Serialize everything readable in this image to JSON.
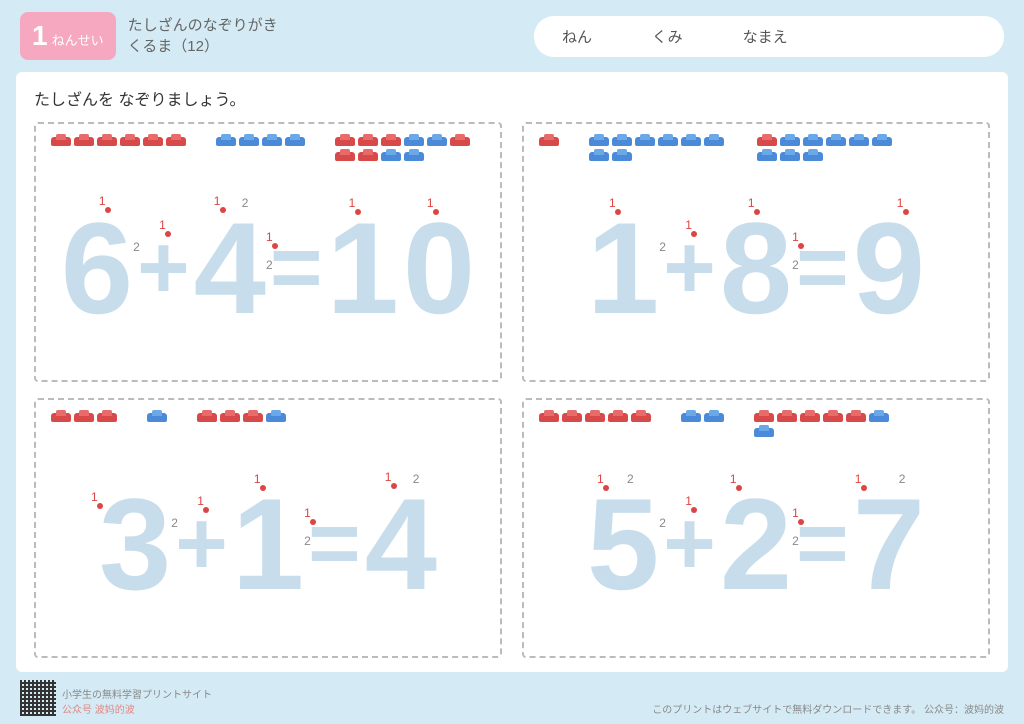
{
  "header": {
    "grade_number": "1",
    "grade_label": "ねんせい",
    "title_line1": "たしざんのなぞりがき",
    "title_line2": "くるま（12）",
    "field_nen": "ねん",
    "field_kumi": "くみ",
    "field_namae": "なまえ"
  },
  "instruction": "たしざんを なぞりましょう。",
  "colors": {
    "page_bg": "#d4ebf5",
    "badge_bg": "#f5a8c0",
    "trace_color": "#c8ddeb",
    "stroke_red": "#d44",
    "car_red": "#d84a4a",
    "car_blue": "#4a8ad8"
  },
  "problems": [
    {
      "a": 6,
      "b": 4,
      "sum": 10,
      "cars_a": [
        "red",
        "red",
        "red",
        "red",
        "red",
        "red"
      ],
      "cars_b": [
        "blue",
        "blue",
        "blue",
        "blue"
      ],
      "cars_sum": [
        "red",
        "red",
        "red",
        "blue",
        "blue",
        "red",
        "red",
        "red",
        "blue",
        "blue"
      ],
      "digits": [
        "6",
        "+",
        "4",
        "=",
        "1",
        "0"
      ]
    },
    {
      "a": 1,
      "b": 8,
      "sum": 9,
      "cars_a": [
        "red"
      ],
      "cars_b": [
        "blue",
        "blue",
        "blue",
        "blue",
        "blue",
        "blue",
        "blue",
        "blue"
      ],
      "cars_sum": [
        "red",
        "blue",
        "blue",
        "blue",
        "blue",
        "blue",
        "blue",
        "blue",
        "blue"
      ],
      "digits": [
        "1",
        "+",
        "8",
        "=",
        "9"
      ]
    },
    {
      "a": 3,
      "b": 1,
      "sum": 4,
      "cars_a": [
        "red",
        "red",
        "red"
      ],
      "cars_b": [
        "blue"
      ],
      "cars_sum": [
        "red",
        "red",
        "red",
        "blue"
      ],
      "digits": [
        "3",
        "+",
        "1",
        "=",
        "4"
      ]
    },
    {
      "a": 5,
      "b": 2,
      "sum": 7,
      "cars_a": [
        "red",
        "red",
        "red",
        "red",
        "red"
      ],
      "cars_b": [
        "blue",
        "blue"
      ],
      "cars_sum": [
        "red",
        "red",
        "red",
        "red",
        "red",
        "blue",
        "blue"
      ],
      "digits": [
        "5",
        "+",
        "2",
        "=",
        "7"
      ]
    }
  ],
  "footer": {
    "left_line1": "小学生の無料学習プリントサイト",
    "left_line2": "公众号 波妈的波",
    "right": "このプリントはウェブサイトで無料ダウンロードできます。 公众号：波妈的波"
  }
}
